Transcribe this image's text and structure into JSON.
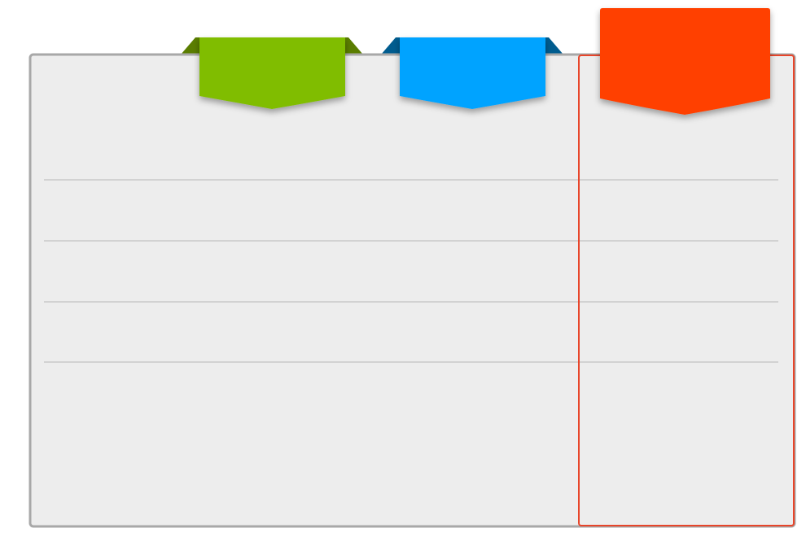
{
  "colors": {
    "background": "#ffffff",
    "panel_fill": "#ededed",
    "panel_border": "#a8a8a8",
    "row_divider": "#b8b8b8",
    "highlight_border": "#e8452a"
  },
  "tabs": [
    {
      "name": "green",
      "color": "#80bd01",
      "fold_color": "#5a7d00",
      "label": "",
      "highlighted": false
    },
    {
      "name": "blue",
      "color": "#00a3ff",
      "fold_color": "#005c8f",
      "label": "",
      "highlighted": false
    },
    {
      "name": "orange",
      "color": "#ff4000",
      "fold_color": "#c23000",
      "label": "",
      "highlighted": true
    }
  ],
  "rows": [
    {
      "label": ""
    },
    {
      "label": ""
    },
    {
      "label": ""
    },
    {
      "label": ""
    },
    {
      "label": ""
    }
  ]
}
